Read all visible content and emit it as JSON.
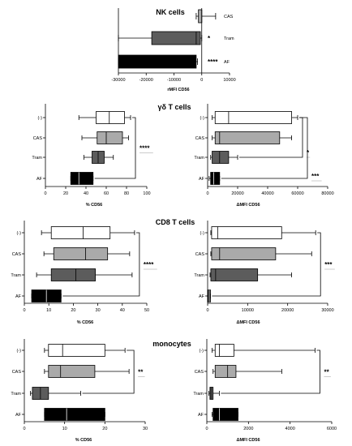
{
  "chart_data": [
    {
      "id": "nk",
      "type": "bar",
      "orientation": "horizontal",
      "title": "NK cells",
      "xlabel": "rMFI  CD56",
      "categories": [
        "CAS",
        "Tram",
        "AF"
      ],
      "xlim": [
        -30000,
        10000
      ],
      "xticks": [
        -30000,
        -20000,
        -10000,
        0,
        10000
      ],
      "series": [
        {
          "category": "CAS",
          "min": -2000,
          "max": 5000,
          "q1": -1200,
          "median": 0,
          "q3": 0,
          "color": "#aaaaaa"
        },
        {
          "category": "Tram",
          "min": -30000,
          "max": 0,
          "q1": -18000,
          "median": -2000,
          "q3": -500,
          "color": "#5c5c5c"
        },
        {
          "category": "AF",
          "min": -30000,
          "max": -1500,
          "q1": -30000,
          "median": -20000,
          "q3": -2000,
          "color": "#000000"
        }
      ],
      "significance": [
        {
          "category": "CAS",
          "label": ""
        },
        {
          "category": "Tram",
          "label": "*"
        },
        {
          "category": "AF",
          "label": "****"
        }
      ]
    },
    {
      "id": "gd_pct",
      "type": "boxplot",
      "title": "γδ T cells",
      "xlabel": "% CD56",
      "categories": [
        "(-)",
        "CAS",
        "Tram",
        "AF"
      ],
      "xlim": [
        0,
        100
      ],
      "xticks": [
        0,
        20,
        40,
        60,
        80,
        100
      ],
      "boxes": [
        {
          "category": "(-)",
          "min": 33,
          "q1": 50,
          "median": 63,
          "q3": 78,
          "max": 84,
          "color": "#ffffff"
        },
        {
          "category": "CAS",
          "min": 36,
          "q1": 51,
          "median": 60,
          "q3": 76,
          "max": 82,
          "color": "#aaaaaa"
        },
        {
          "category": "Tram",
          "min": 38,
          "q1": 46,
          "median": 52,
          "q3": 58,
          "max": 67,
          "color": "#5c5c5c"
        },
        {
          "category": "AF",
          "min": 25,
          "q1": 25,
          "median": 33,
          "q3": 47,
          "max": 47,
          "color": "#000000"
        }
      ],
      "brackets": [
        {
          "from": "(-)",
          "to": "AF",
          "label": "****"
        }
      ]
    },
    {
      "id": "gd_mfi",
      "type": "boxplot",
      "title": "",
      "xlabel": "ΔMFI CD56",
      "categories": [
        "(-)",
        "CAS",
        "Tram",
        "AF"
      ],
      "xlim": [
        0,
        80000
      ],
      "xticks": [
        0,
        20000,
        40000,
        60000,
        80000
      ],
      "boxes": [
        {
          "category": "(-)",
          "min": 3000,
          "q1": 5000,
          "median": 14000,
          "q3": 56000,
          "max": 60000,
          "color": "#ffffff"
        },
        {
          "category": "CAS",
          "min": 3000,
          "q1": 5000,
          "median": 8000,
          "q3": 48000,
          "max": 56000,
          "color": "#aaaaaa"
        },
        {
          "category": "Tram",
          "min": 2000,
          "q1": 3000,
          "median": 8000,
          "q3": 14000,
          "max": 20000,
          "color": "#5c5c5c"
        },
        {
          "category": "AF",
          "min": 1000,
          "q1": 2000,
          "median": 4000,
          "q3": 8000,
          "max": 8000,
          "color": "#000000"
        }
      ],
      "brackets": [
        {
          "from": "(-)",
          "to": "Tram",
          "label": "*"
        },
        {
          "from": "(-)",
          "to": "AF",
          "label": "***"
        }
      ]
    },
    {
      "id": "cd8_pct",
      "type": "boxplot",
      "title": "CD8 T cells",
      "xlabel": "% CD56",
      "categories": [
        "(-)",
        "CAS",
        "Tram",
        "AF"
      ],
      "xlim": [
        0,
        50
      ],
      "xticks": [
        0,
        10,
        20,
        30,
        40,
        50
      ],
      "boxes": [
        {
          "category": "(-)",
          "min": 7,
          "q1": 11,
          "median": 24,
          "q3": 35,
          "max": 45,
          "color": "#ffffff"
        },
        {
          "category": "CAS",
          "min": 8,
          "q1": 12,
          "median": 25,
          "q3": 34,
          "max": 43,
          "color": "#aaaaaa"
        },
        {
          "category": "Tram",
          "min": 5,
          "q1": 11,
          "median": 21,
          "q3": 29,
          "max": 44,
          "color": "#5c5c5c"
        },
        {
          "category": "AF",
          "min": 3,
          "q1": 3,
          "median": 9,
          "q3": 15,
          "max": 15,
          "color": "#000000"
        }
      ],
      "brackets": [
        {
          "from": "(-)",
          "to": "AF",
          "label": "****"
        }
      ]
    },
    {
      "id": "cd8_mfi",
      "type": "boxplot",
      "title": "",
      "xlabel": "ΔMFI CD56",
      "categories": [
        "(-)",
        "CAS",
        "Tram",
        "AF"
      ],
      "xlim": [
        0,
        30000
      ],
      "xticks": [
        0,
        10000,
        20000,
        30000
      ],
      "boxes": [
        {
          "category": "(-)",
          "min": 800,
          "q1": 1000,
          "median": 2500,
          "q3": 18500,
          "max": 27000,
          "color": "#ffffff"
        },
        {
          "category": "CAS",
          "min": 800,
          "q1": 1000,
          "median": 3000,
          "q3": 17000,
          "max": 26000,
          "color": "#aaaaaa"
        },
        {
          "category": "Tram",
          "min": 600,
          "q1": 800,
          "median": 2000,
          "q3": 12500,
          "max": 21000,
          "color": "#5c5c5c"
        },
        {
          "category": "AF",
          "min": 0,
          "q1": 0,
          "median": 400,
          "q3": 700,
          "max": 700,
          "color": "#000000"
        }
      ],
      "brackets": [
        {
          "from": "(-)",
          "to": "AF",
          "label": "***"
        }
      ]
    },
    {
      "id": "mono_pct",
      "type": "boxplot",
      "title": "monocytes",
      "xlabel": "% CD56",
      "categories": [
        "(-)",
        "CAS",
        "Tram",
        "AF"
      ],
      "xlim": [
        0,
        30
      ],
      "xticks": [
        0,
        10,
        20,
        30
      ],
      "boxes": [
        {
          "category": "(-)",
          "min": 5,
          "q1": 6,
          "median": 9.5,
          "q3": 20,
          "max": 25,
          "color": "#ffffff"
        },
        {
          "category": "CAS",
          "min": 5,
          "q1": 6,
          "median": 9,
          "q3": 17.5,
          "max": 26,
          "color": "#aaaaaa"
        },
        {
          "category": "Tram",
          "min": 1.5,
          "q1": 2,
          "median": 4,
          "q3": 6,
          "max": 14,
          "color": "#5c5c5c"
        },
        {
          "category": "AF",
          "min": 5,
          "q1": 5,
          "median": 10.5,
          "q3": 20,
          "max": 20,
          "color": "#000000"
        }
      ],
      "brackets": [
        {
          "from": "(-)",
          "to": "Tram",
          "label": "**"
        }
      ]
    },
    {
      "id": "mono_mfi",
      "type": "boxplot",
      "title": "",
      "xlabel": "ΔMFI CD56",
      "categories": [
        "(-)",
        "CAS",
        "Tram",
        "AF"
      ],
      "xlim": [
        0,
        6000
      ],
      "xticks": [
        0,
        2000,
        4000,
        6000
      ],
      "boxes": [
        {
          "category": "(-)",
          "min": 250,
          "q1": 400,
          "median": 600,
          "q3": 1300,
          "max": 5200,
          "color": "#ffffff"
        },
        {
          "category": "CAS",
          "min": 300,
          "q1": 400,
          "median": 1000,
          "q3": 1400,
          "max": 3600,
          "color": "#aaaaaa"
        },
        {
          "category": "Tram",
          "min": 100,
          "q1": 150,
          "median": 200,
          "q3": 300,
          "max": 600,
          "color": "#5c5c5c"
        },
        {
          "category": "AF",
          "min": 250,
          "q1": 300,
          "median": 600,
          "q3": 1500,
          "max": 1500,
          "color": "#000000"
        }
      ],
      "brackets": [
        {
          "from": "(-)",
          "to": "Tram",
          "label": "**"
        }
      ]
    }
  ]
}
